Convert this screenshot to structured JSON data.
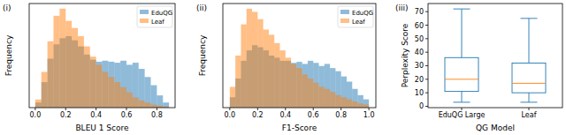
{
  "chart_data": [
    {
      "type": "histogram",
      "title": "(i)",
      "xlabel": "BLEU 1 Score",
      "ylabel": "Frequency",
      "bins": [
        0.0,
        0.04,
        0.08,
        0.12,
        0.16,
        0.2,
        0.24,
        0.28,
        0.32,
        0.36,
        0.4,
        0.44,
        0.48,
        0.52,
        0.56,
        0.6,
        0.64,
        0.68,
        0.72,
        0.76,
        0.8,
        0.84,
        0.88
      ],
      "series": [
        {
          "name": "EduQG",
          "color": "#1f77b4",
          "values": [
            5,
            25,
            48,
            62,
            68,
            70,
            66,
            60,
            52,
            47,
            45,
            46,
            45,
            44,
            46,
            42,
            44,
            38,
            30,
            22,
            12,
            5
          ]
        },
        {
          "name": "Leaf",
          "color": "#ff7f0e",
          "values": [
            8,
            35,
            65,
            90,
            97,
            85,
            78,
            70,
            60,
            50,
            42,
            35,
            30,
            25,
            20,
            15,
            10,
            7,
            5,
            3,
            2,
            1
          ]
        }
      ],
      "xlim": [
        -0.04,
        0.92
      ],
      "ylim": [
        0,
        102
      ],
      "xticks": [
        {
          "value": 0,
          "label": "0.0"
        },
        {
          "value": 0.2,
          "label": "0.2"
        },
        {
          "value": 0.4,
          "label": "0.4"
        },
        {
          "value": 0.6,
          "label": "0.6"
        },
        {
          "value": 0.8,
          "label": "0.8"
        }
      ],
      "legend": "upper right",
      "tick_labels": "x"
    },
    {
      "type": "histogram",
      "title": "(ii)",
      "xlabel": "F1-Score",
      "ylabel": "Frequency",
      "bins": [
        0.0,
        0.04,
        0.08,
        0.12,
        0.16,
        0.2,
        0.24,
        0.28,
        0.32,
        0.36,
        0.4,
        0.44,
        0.48,
        0.52,
        0.56,
        0.6,
        0.64,
        0.68,
        0.72,
        0.76,
        0.8,
        0.84,
        0.88,
        0.92,
        0.96,
        1.0
      ],
      "series": [
        {
          "name": "EduQG",
          "color": "#1f77b4",
          "values": [
            10,
            28,
            45,
            55,
            60,
            58,
            55,
            50,
            48,
            45,
            45,
            43,
            44,
            42,
            45,
            43,
            40,
            42,
            38,
            35,
            30,
            25,
            18,
            12,
            8
          ]
        },
        {
          "name": "Leaf",
          "color": "#ff7f0e",
          "values": [
            20,
            50,
            80,
            95,
            92,
            85,
            75,
            70,
            62,
            55,
            48,
            42,
            38,
            32,
            28,
            24,
            20,
            18,
            15,
            12,
            10,
            8,
            6,
            4,
            3
          ]
        }
      ],
      "xlim": [
        -0.05,
        1.05
      ],
      "ylim": [
        0,
        100
      ],
      "xticks": [
        {
          "value": 0,
          "label": "0.0"
        },
        {
          "value": 0.2,
          "label": "0.2"
        },
        {
          "value": 0.4,
          "label": "0.4"
        },
        {
          "value": 0.6,
          "label": "0.6"
        },
        {
          "value": 0.8,
          "label": "0.8"
        },
        {
          "value": 1,
          "label": "1.0"
        }
      ],
      "legend": "upper right",
      "tick_labels": "x"
    },
    {
      "type": "box",
      "title": "(iii)",
      "xlabel": "QG Model",
      "ylabel": "Perplexity Score",
      "categories": [
        "EduQG Large",
        "Leaf"
      ],
      "min": [
        3,
        3
      ],
      "q1": [
        11,
        10
      ],
      "median": [
        20,
        17
      ],
      "q3": [
        36,
        32
      ],
      "max": [
        72,
        65
      ],
      "color": "#1f77b4",
      "ylim": [
        -1,
        76
      ],
      "yticks": [
        0,
        10,
        20,
        30,
        40,
        50,
        60,
        70
      ]
    }
  ]
}
